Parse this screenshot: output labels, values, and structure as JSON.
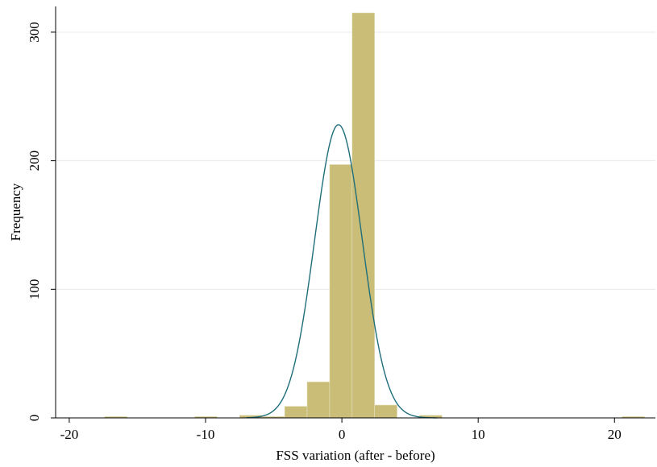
{
  "chart_data": {
    "type": "bar",
    "subtype": "histogram with normal density overlay",
    "xlabel": "FSS variation (after - before)",
    "ylabel": "Frequency",
    "xlim": [
      -21,
      23
    ],
    "ylim": [
      0,
      320
    ],
    "x_ticks": [
      -20,
      -10,
      0,
      10,
      20
    ],
    "x_tick_labels": [
      "-20",
      "-10",
      "0",
      "10",
      "20"
    ],
    "y_ticks": [
      0,
      100,
      200,
      300
    ],
    "y_tick_labels": [
      "0",
      "100",
      "200",
      "300"
    ],
    "grid": "horizontal",
    "bin_width": 1.65,
    "bins": [
      {
        "x0": -17.4,
        "x1": -15.75,
        "value": 1
      },
      {
        "x0": -10.8,
        "x1": -9.15,
        "value": 1
      },
      {
        "x0": -7.5,
        "x1": -5.85,
        "value": 2
      },
      {
        "x0": -5.85,
        "x1": -4.2,
        "value": 1
      },
      {
        "x0": -4.2,
        "x1": -2.55,
        "value": 9
      },
      {
        "x0": -2.55,
        "x1": -0.9,
        "value": 28
      },
      {
        "x0": -0.9,
        "x1": 0.75,
        "value": 197
      },
      {
        "x0": 0.75,
        "x1": 2.4,
        "value": 315
      },
      {
        "x0": 2.4,
        "x1": 4.05,
        "value": 10
      },
      {
        "x0": 5.7,
        "x1": 7.35,
        "value": 2
      },
      {
        "x0": 20.55,
        "x1": 22.2,
        "value": 1
      }
    ],
    "normal_curve": {
      "mean": -0.25,
      "sd": 1.75,
      "peak": 228
    },
    "colors": {
      "bars": "#c9bd78",
      "bar_edge": "#e8e2c0",
      "curve": "#1f6e7a",
      "grid": "#eaeaea"
    }
  }
}
